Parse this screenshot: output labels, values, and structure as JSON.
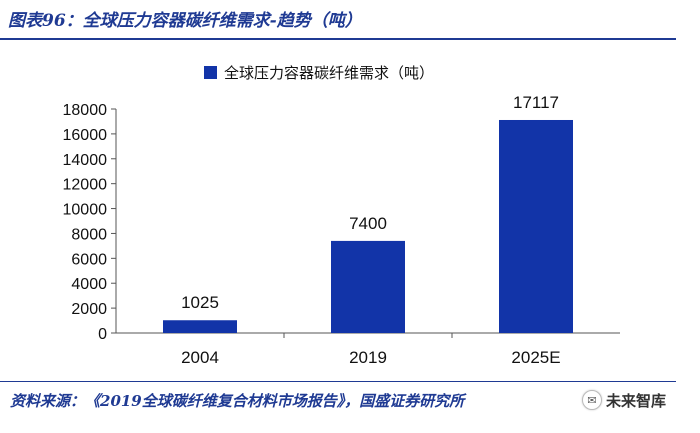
{
  "figure_title": "图表96：全球压力容器碳纤维需求-趋势（吨）",
  "source_note": "资料来源：《2019全球碳纤维复合材料市场报告》，国盛证券研究所",
  "watermark": {
    "text": "未来智库",
    "icon": "wechat-icon"
  },
  "colors": {
    "bar": "#1234a8",
    "title": "#1f3a93",
    "axis": "#555555"
  },
  "chart_data": {
    "type": "bar",
    "legend_position": "top",
    "categories": [
      "2004",
      "2019",
      "2025E"
    ],
    "series": [
      {
        "name": "全球压力容器碳纤维需求（吨）",
        "values": [
          1025,
          7400,
          17117
        ]
      }
    ],
    "data_labels": [
      "1025",
      "7400",
      "17117"
    ],
    "ylim": [
      0,
      18000
    ],
    "y_ticks": [
      0,
      2000,
      4000,
      6000,
      8000,
      10000,
      12000,
      14000,
      16000,
      18000
    ],
    "grid": false
  }
}
